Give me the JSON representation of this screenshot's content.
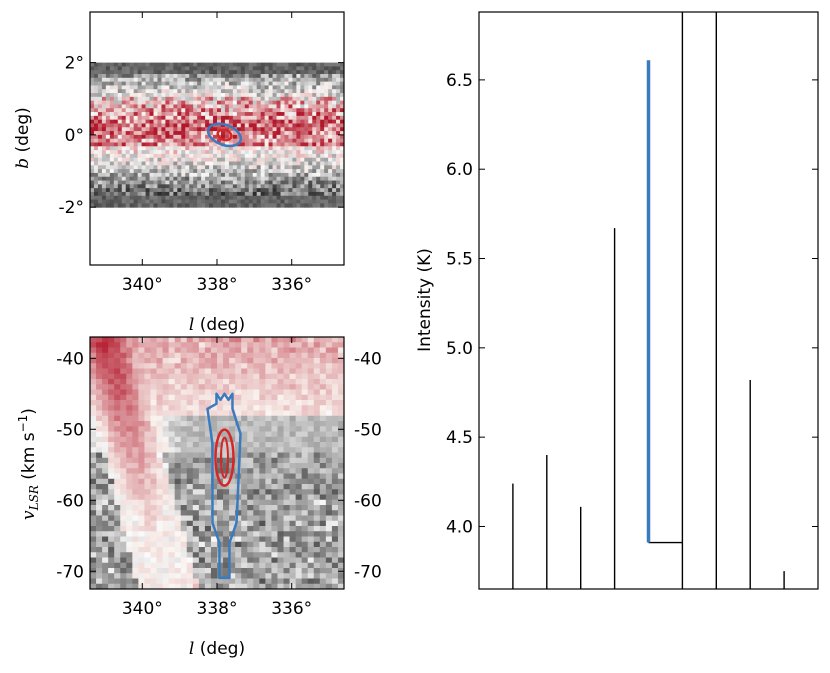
{
  "chart_data": [
    {
      "panel": "sky map",
      "type": "heatmap",
      "xlabel_symbol": "l",
      "xlabel": "(deg)",
      "ylabel_symbol": "b",
      "ylabel": "(deg)",
      "xlim": [
        341.4,
        334.6
      ],
      "ylim": [
        -3.6,
        3.4
      ],
      "data_extent_b": [
        -2.0,
        2.0
      ],
      "x_ticks": [
        340,
        338,
        336
      ],
      "x_tick_labels": [
        "340°",
        "338°",
        "336°"
      ],
      "y_ticks": [
        2,
        0,
        -2
      ],
      "y_tick_labels": [
        "2°",
        "0°",
        "-2°"
      ],
      "colormap": "gray-to-red diverging",
      "contour_colors": [
        "#3a7bbf",
        "#d62728"
      ],
      "source_position": {
        "l": 337.8,
        "b": 0.0
      }
    },
    {
      "panel": "position-velocity",
      "type": "heatmap",
      "xlabel_symbol": "l",
      "xlabel": "(deg)",
      "ylabel_symbol": "v",
      "ylabel_subscript": "LSR",
      "ylabel": "(km s",
      "ylabel_sup": "−1",
      "ylabel_close": ")",
      "xlim": [
        341.4,
        334.6
      ],
      "ylim": [
        -72.5,
        -37.0
      ],
      "x_ticks": [
        340,
        338,
        336
      ],
      "x_tick_labels": [
        "340°",
        "338°",
        "336°"
      ],
      "y_ticks": [
        -40,
        -50,
        -60,
        -70
      ],
      "y_tick_labels": [
        "-40",
        "-50",
        "-60",
        "-70"
      ],
      "colormap": "gray-to-red diverging",
      "contour_colors": [
        "#3a7bbf",
        "#d62728"
      ],
      "source_velocity_range": [
        -66,
        -45
      ],
      "source_l": 337.8
    },
    {
      "panel": "dendrogram",
      "type": "line",
      "ylabel": "Intensity (K)",
      "ylim": [
        3.65,
        6.88
      ],
      "y_ticks": [
        4.0,
        4.5,
        5.0,
        5.5,
        6.0,
        6.5
      ],
      "y_tick_labels": [
        "4.0",
        "4.5",
        "5.0",
        "5.5",
        "6.0",
        "6.5"
      ],
      "base": 3.65,
      "leaves": [
        {
          "x": 1,
          "top": 4.24
        },
        {
          "x": 2,
          "top": 4.4
        },
        {
          "x": 3,
          "top": 4.11
        },
        {
          "x": 4,
          "top": 5.67
        },
        {
          "x": 8,
          "top": 4.82
        },
        {
          "x": 9,
          "top": 3.75
        }
      ],
      "structures": [
        {
          "x": 6,
          "bottom": 3.65,
          "top": 3.91
        },
        {
          "x": 6,
          "bottom": 3.91,
          "top": 6.88
        },
        {
          "x": 7,
          "bottom": 3.65,
          "top": 6.88
        }
      ],
      "branch": {
        "x1": 5,
        "x2": 6,
        "y": 3.91
      },
      "highlight": {
        "x": 5,
        "bottom": 3.91,
        "top": 6.61,
        "color": "#3a7bbf"
      }
    }
  ]
}
